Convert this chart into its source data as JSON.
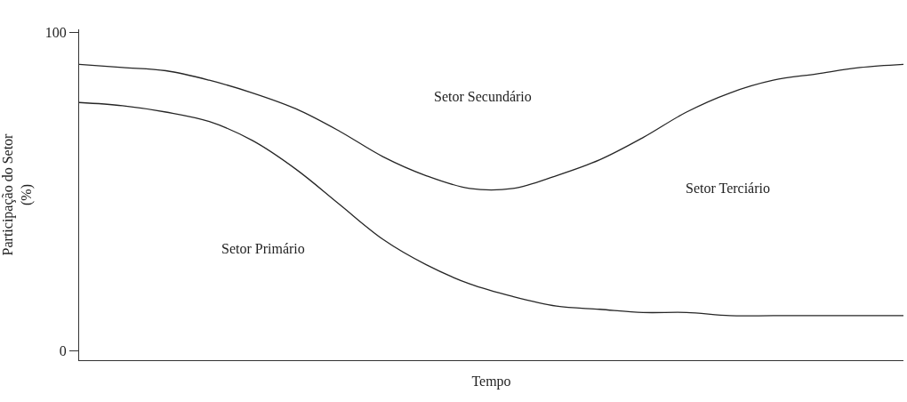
{
  "chart_data": {
    "type": "line",
    "xlabel": "Tempo",
    "ylabel": "Participação do Setor (%)",
    "categories": [
      null,
      null,
      null,
      null,
      null,
      null,
      null,
      null,
      null,
      null,
      null,
      null,
      null,
      null,
      null,
      null,
      null,
      null,
      null,
      null
    ],
    "series": [
      {
        "color": "#262626",
        "values": [
          90,
          89,
          88,
          85,
          81,
          76,
          69,
          61,
          55,
          51,
          51,
          55,
          60,
          67,
          75,
          81,
          85,
          87,
          89,
          90
        ]
      },
      {
        "color": "#262626",
        "values": [
          78,
          77,
          75,
          72,
          66,
          57,
          46,
          35,
          27,
          21,
          17,
          14,
          13,
          12,
          12,
          11,
          11,
          11,
          11,
          11
        ]
      }
    ],
    "annotations": [
      "Setor Secundário",
      "Setor Terciário",
      "Setor Primário"
    ],
    "ylim": [
      -3,
      101
    ],
    "yticks": [
      0,
      100
    ],
    "marker": "none",
    "line_style": "solid"
  }
}
